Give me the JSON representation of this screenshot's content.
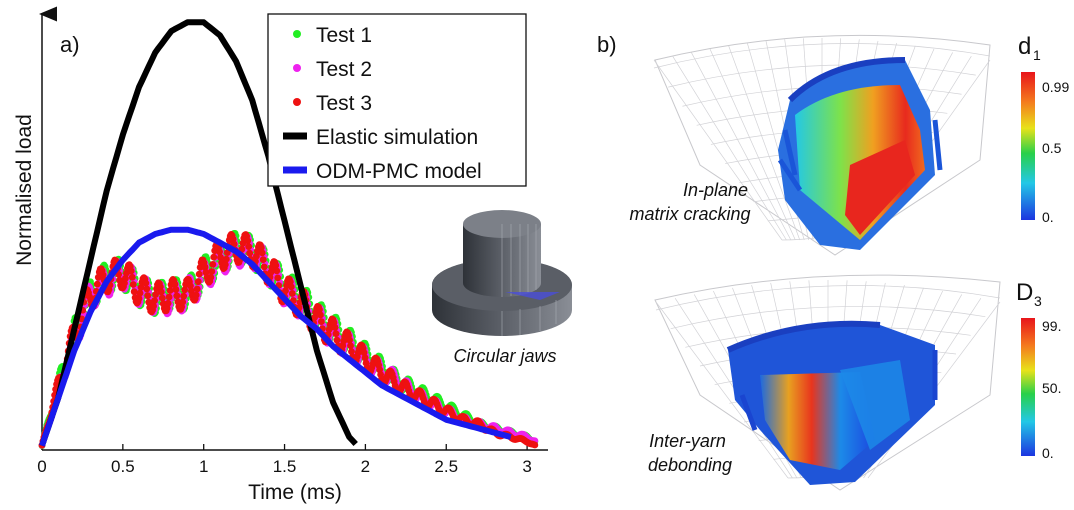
{
  "chart_data": [
    {
      "panel_label": "a)",
      "type": "line",
      "xlabel": "Time (ms)",
      "ylabel": "Normalised load",
      "xlim": [
        0,
        3.1
      ],
      "ylim": [
        0,
        1.0
      ],
      "x_ticks": [
        0,
        0.5,
        1,
        1.5,
        2,
        2.5,
        3
      ],
      "x_tick_labels": [
        "0",
        "0.5",
        "1",
        "1.5",
        "2",
        "2.5",
        "3"
      ],
      "grid": false,
      "legend_position": "top-right",
      "series": [
        {
          "name": "Test 1",
          "color": "#22ee22",
          "style": "dots",
          "x": [
            0,
            0.1,
            0.2,
            0.3,
            0.4,
            0.5,
            0.6,
            0.7,
            0.8,
            0.9,
            1.0,
            1.1,
            1.2,
            1.3,
            1.4,
            1.5,
            1.6,
            1.7,
            1.8,
            1.9,
            2.0,
            2.1,
            2.2,
            2.3,
            2.4,
            2.5,
            2.6,
            2.7,
            2.8,
            2.9,
            3.0,
            3.05
          ],
          "y": [
            0.01,
            0.15,
            0.27,
            0.36,
            0.4,
            0.41,
            0.37,
            0.35,
            0.36,
            0.36,
            0.41,
            0.44,
            0.47,
            0.46,
            0.42,
            0.38,
            0.35,
            0.31,
            0.28,
            0.25,
            0.22,
            0.19,
            0.16,
            0.14,
            0.12,
            0.1,
            0.08,
            0.06,
            0.05,
            0.04,
            0.03,
            0.02
          ]
        },
        {
          "name": "Test 2",
          "color": "#ee22ee",
          "style": "dots",
          "x": [
            0,
            0.1,
            0.2,
            0.3,
            0.4,
            0.5,
            0.6,
            0.7,
            0.8,
            0.9,
            1.0,
            1.1,
            1.2,
            1.3,
            1.4,
            1.5,
            1.6,
            1.7,
            1.8,
            1.9,
            2.0,
            2.1,
            2.2,
            2.3,
            2.4,
            2.5,
            2.6,
            2.7,
            2.8,
            2.9,
            3.0,
            3.05
          ],
          "y": [
            0.01,
            0.14,
            0.26,
            0.36,
            0.39,
            0.41,
            0.37,
            0.35,
            0.35,
            0.36,
            0.4,
            0.44,
            0.46,
            0.46,
            0.42,
            0.37,
            0.34,
            0.3,
            0.27,
            0.24,
            0.21,
            0.18,
            0.16,
            0.13,
            0.11,
            0.09,
            0.07,
            0.06,
            0.05,
            0.04,
            0.03,
            0.02
          ]
        },
        {
          "name": "Test 3",
          "color": "#ee1111",
          "style": "dots",
          "x": [
            0,
            0.1,
            0.2,
            0.3,
            0.4,
            0.5,
            0.6,
            0.7,
            0.8,
            0.9,
            1.0,
            1.1,
            1.2,
            1.3,
            1.4,
            1.5,
            1.6,
            1.7,
            1.8,
            1.9,
            2.0,
            2.1,
            2.2,
            2.3,
            2.4,
            2.5,
            2.6,
            2.7,
            2.8,
            2.9,
            3.0,
            3.05
          ],
          "y": [
            0.01,
            0.15,
            0.27,
            0.36,
            0.4,
            0.41,
            0.37,
            0.35,
            0.36,
            0.36,
            0.41,
            0.45,
            0.47,
            0.46,
            0.42,
            0.37,
            0.34,
            0.3,
            0.27,
            0.24,
            0.21,
            0.18,
            0.15,
            0.13,
            0.11,
            0.09,
            0.07,
            0.06,
            0.04,
            0.03,
            0.02,
            0.01
          ]
        },
        {
          "name": "Elastic simulation",
          "color": "#000000",
          "style": "line",
          "x": [
            0,
            0.1,
            0.2,
            0.3,
            0.4,
            0.5,
            0.6,
            0.7,
            0.8,
            0.9,
            1.0,
            1.1,
            1.2,
            1.3,
            1.4,
            1.5,
            1.6,
            1.7,
            1.8,
            1.9,
            1.95
          ],
          "y": [
            0.01,
            0.12,
            0.28,
            0.44,
            0.6,
            0.73,
            0.84,
            0.92,
            0.97,
            0.99,
            0.99,
            0.96,
            0.9,
            0.81,
            0.68,
            0.53,
            0.38,
            0.23,
            0.11,
            0.03,
            0.01
          ]
        },
        {
          "name": "ODM-PMC model",
          "color": "#1a1aee",
          "style": "line",
          "x": [
            0,
            0.1,
            0.2,
            0.3,
            0.4,
            0.5,
            0.6,
            0.7,
            0.8,
            0.9,
            1.0,
            1.1,
            1.2,
            1.3,
            1.4,
            1.5,
            1.6,
            1.7,
            1.8,
            1.9,
            2.0,
            2.1,
            2.2,
            2.3,
            2.4,
            2.5,
            2.6,
            2.7,
            2.8,
            2.9
          ],
          "y": [
            0.01,
            0.12,
            0.23,
            0.32,
            0.39,
            0.44,
            0.48,
            0.5,
            0.51,
            0.51,
            0.5,
            0.48,
            0.46,
            0.43,
            0.39,
            0.35,
            0.31,
            0.28,
            0.24,
            0.21,
            0.18,
            0.15,
            0.13,
            0.11,
            0.09,
            0.07,
            0.06,
            0.05,
            0.04,
            0.03
          ]
        }
      ],
      "inset": {
        "caption": "Circular jaws"
      }
    },
    {
      "panel_label": "b)",
      "type": "heatmap",
      "panels": [
        {
          "caption": "In-plane matrix cracking",
          "colorbar_label": "d",
          "colorbar_subscript": "1",
          "colorbar_ticks": [
            "0.99",
            "0.5",
            "0."
          ]
        },
        {
          "caption": "Inter-yarn debonding",
          "colorbar_label": "D",
          "colorbar_subscript": "3",
          "colorbar_ticks": [
            "99.",
            "50.",
            "0."
          ]
        }
      ]
    }
  ]
}
